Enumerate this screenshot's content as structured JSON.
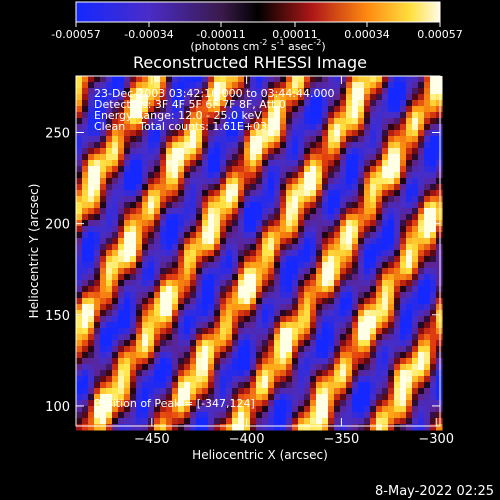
{
  "colorbar": {
    "ticks": [
      "-0.00057",
      "-0.00034",
      "-0.00011",
      "0.00011",
      "0.00034",
      "0.00057"
    ],
    "unit_parts": [
      "(photons cm",
      "-2",
      " s",
      "-1",
      " asec",
      "-2",
      ")"
    ]
  },
  "title": "Reconstructed RHESSI Image",
  "info": {
    "time": "23-Dec-2003 03:42:16.000 to 03:44:44.000",
    "detectors": "Detectors: 3F 4F 5F 6F 7F 8F, Att 0",
    "energy": "Energy Range: 12.0 - 25.0 keV",
    "clean": "Clean    Total counts: 1.61E+03",
    "peak": "Position of Peak = [-347,124]"
  },
  "footer_date": "8-May-2022 02:25",
  "chart_data": {
    "type": "heatmap",
    "title": "Reconstructed RHESSI Image",
    "xlabel": "Heliocentric X (arcsec)",
    "ylabel": "Heliocentric Y (arcsec)",
    "xlim": [
      -490,
      -298
    ],
    "ylim": [
      89,
      281
    ],
    "x_ticks": [
      -450,
      -400,
      -350,
      -300
    ],
    "y_ticks": [
      100,
      150,
      200,
      250
    ],
    "x_tick_labels": [
      "−450",
      "−400",
      "−350",
      "−300"
    ],
    "y_tick_labels": [
      "100",
      "150",
      "200",
      "250"
    ],
    "colorbar_range": [
      -0.00057,
      0.00057
    ],
    "colormap": "red-temperature (blue → purple → black → red → yellow → white)",
    "peak_position": [
      -347,
      124
    ],
    "stripe_orientation": "diagonal, lower-left to upper-right",
    "stripe_spacing_arcsec": 33
  }
}
